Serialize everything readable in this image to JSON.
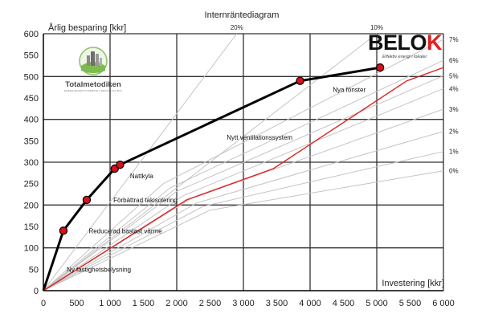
{
  "chart_data": {
    "type": "line",
    "title": "Internräntediagram",
    "ylabel": "Årlig besparing [kkr]",
    "xlabel": "Investering [kkr]",
    "xlim": [
      0,
      6000
    ],
    "ylim": [
      0,
      600
    ],
    "x_ticks": [
      0,
      500,
      1000,
      1500,
      2000,
      2500,
      3000,
      3500,
      4000,
      4500,
      5000,
      5500,
      6000
    ],
    "x_tick_labels": [
      "0",
      "500",
      "1 000",
      "1 500",
      "2 000",
      "2 500",
      "3 000",
      "3 500",
      "4 000",
      "4 500",
      "5 000",
      "5 500",
      "6 000"
    ],
    "y_ticks": [
      0,
      50,
      100,
      150,
      200,
      250,
      300,
      350,
      400,
      450,
      500,
      550,
      600
    ],
    "y_tick_labels": [
      "0",
      "50",
      "100",
      "150",
      "200",
      "250",
      "300",
      "350",
      "400",
      "450",
      "500",
      "550",
      "600"
    ],
    "grid": true,
    "top_rate_labels": [
      {
        "label": "20%",
        "x": 2900
      },
      {
        "label": "10%",
        "x": 5000
      }
    ],
    "right_rate_labels": [
      {
        "label": "7%",
        "y": 587
      },
      {
        "label": "6%",
        "y": 538
      },
      {
        "label": "5%",
        "y": 502
      },
      {
        "label": "4%",
        "y": 472
      },
      {
        "label": "3%",
        "y": 424
      },
      {
        "label": "2%",
        "y": 372
      },
      {
        "label": "1%",
        "y": 325
      },
      {
        "label": "0%",
        "y": 280
      }
    ],
    "rate_lines": [
      {
        "label": "20%",
        "points": [
          [
            0,
            0
          ],
          [
            2900,
            600
          ]
        ]
      },
      {
        "label": "10%",
        "points": [
          [
            0,
            0
          ],
          [
            5000,
            600
          ]
        ]
      },
      {
        "label": "7%",
        "points": [
          [
            0,
            0
          ],
          [
            1800,
            250
          ],
          [
            6000,
            587
          ]
        ]
      },
      {
        "label": "6%",
        "points": [
          [
            0,
            0
          ],
          [
            1900,
            240
          ],
          [
            6000,
            538
          ]
        ]
      },
      {
        "label": "5%",
        "points": [
          [
            0,
            0
          ],
          [
            2000,
            232
          ],
          [
            6000,
            502
          ]
        ]
      },
      {
        "label": "4%",
        "points": [
          [
            0,
            0
          ],
          [
            2100,
            222
          ],
          [
            6000,
            472
          ]
        ]
      },
      {
        "label": "3%",
        "points": [
          [
            0,
            0
          ],
          [
            2200,
            214
          ],
          [
            6000,
            424
          ]
        ]
      },
      {
        "label": "2%",
        "points": [
          [
            0,
            0
          ],
          [
            2300,
            205
          ],
          [
            6000,
            372
          ]
        ]
      },
      {
        "label": "1%",
        "points": [
          [
            0,
            0
          ],
          [
            2400,
            197
          ],
          [
            6000,
            325
          ]
        ]
      },
      {
        "label": "0%",
        "points": [
          [
            0,
            0
          ],
          [
            2500,
            188
          ],
          [
            6000,
            280
          ]
        ]
      }
    ],
    "series": [
      {
        "color": "#000000",
        "points": [
          [
            0,
            0
          ],
          [
            300,
            140
          ],
          [
            650,
            212
          ],
          [
            1070,
            285
          ],
          [
            1150,
            294
          ],
          [
            3850,
            490
          ],
          [
            5050,
            521
          ]
        ],
        "markers": [
          [
            300,
            140
          ],
          [
            650,
            212
          ],
          [
            1070,
            285
          ],
          [
            1150,
            294
          ],
          [
            3850,
            490
          ],
          [
            5050,
            521
          ]
        ]
      },
      {
        "color": "#e02020",
        "points": [
          [
            0,
            0
          ],
          [
            2150,
            212
          ],
          [
            3450,
            285
          ],
          [
            5450,
            490
          ],
          [
            6000,
            521
          ]
        ]
      }
    ],
    "annotations": [
      {
        "text": "Ny fastighetsbelysning",
        "x": 350,
        "y": 50
      },
      {
        "text": "Reducerad baslast värme",
        "x": 680,
        "y": 140
      },
      {
        "text": "Förbättrad takisolering",
        "x": 1050,
        "y": 212
      },
      {
        "text": "Nattkyla",
        "x": 1300,
        "y": 268
      },
      {
        "text": "Nytt ventilationssystem",
        "x": 2750,
        "y": 358
      },
      {
        "text": "Nya fönster",
        "x": 4340,
        "y": 470
      }
    ]
  },
  "logos": {
    "belok_word_main": "BELO",
    "belok_word_end": "K",
    "belok_tagline": "Effektiv energi i lokaler",
    "totalmetodiken_word": "Totalmetodiken",
    "totalmetodiken_sub": "ENERGIEFFEKTIVISERING I BEFINTLIGA BYGGNADER"
  },
  "colors": {
    "grid": "#333333",
    "rate_lines": "#c4c4c4",
    "measures_line": "#000000",
    "zero_rate_line": "#e02020",
    "marker_fill": "#d8101a"
  }
}
